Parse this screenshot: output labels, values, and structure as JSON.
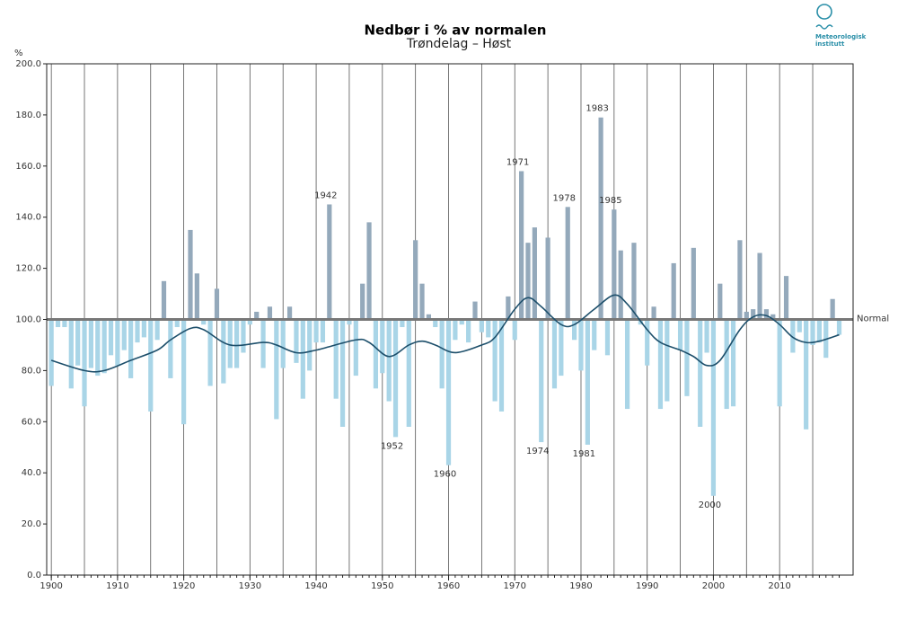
{
  "chart_data": {
    "type": "bar",
    "title": "Nedbør i % av normalen",
    "subtitle": "Trøndelag – Høst",
    "y_label": "%",
    "logo": [
      "Meteorologisk",
      "institutt"
    ],
    "normal": {
      "value": 100,
      "label": "Normal"
    },
    "xlim": [
      1899.3,
      2021.1
    ],
    "ylim": [
      0,
      200
    ],
    "xticks": [
      1900,
      1910,
      1920,
      1930,
      1940,
      1950,
      1960,
      1970,
      1980,
      1990,
      2000,
      2010
    ],
    "xgrid": [
      1900,
      1905,
      1910,
      1915,
      1920,
      1925,
      1930,
      1935,
      1940,
      1945,
      1950,
      1955,
      1960,
      1965,
      1970,
      1975,
      1980,
      1985,
      1990,
      1995,
      2000,
      2005,
      2010,
      2015
    ],
    "yticks": [
      {
        "value": 0,
        "label": "0.0"
      },
      {
        "value": 20,
        "label": "20.0"
      },
      {
        "value": 40,
        "label": "40.0"
      },
      {
        "value": 60,
        "label": "60.0"
      },
      {
        "value": 80,
        "label": "80.0"
      },
      {
        "value": 100,
        "label": "100.0"
      },
      {
        "value": 120,
        "label": "120.0"
      },
      {
        "value": 140,
        "label": "140.0"
      },
      {
        "value": 160,
        "label": "160.0"
      },
      {
        "value": 180,
        "label": "180.0"
      },
      {
        "value": 200,
        "label": "200.0"
      }
    ],
    "colors": {
      "above": "#94a9bb",
      "below": "#a9d5e7",
      "trend": "#1d4f6b"
    },
    "x": [
      1900,
      1901,
      1902,
      1903,
      1904,
      1905,
      1906,
      1907,
      1908,
      1909,
      1910,
      1911,
      1912,
      1913,
      1914,
      1915,
      1916,
      1917,
      1918,
      1919,
      1920,
      1921,
      1922,
      1923,
      1924,
      1925,
      1926,
      1927,
      1928,
      1929,
      1930,
      1931,
      1932,
      1933,
      1934,
      1935,
      1936,
      1937,
      1938,
      1939,
      1940,
      1941,
      1942,
      1943,
      1944,
      1945,
      1946,
      1947,
      1948,
      1949,
      1950,
      1951,
      1952,
      1953,
      1954,
      1955,
      1956,
      1957,
      1958,
      1959,
      1960,
      1961,
      1962,
      1963,
      1964,
      1965,
      1966,
      1967,
      1968,
      1969,
      1970,
      1971,
      1972,
      1973,
      1974,
      1975,
      1976,
      1977,
      1978,
      1979,
      1980,
      1981,
      1982,
      1983,
      1984,
      1985,
      1986,
      1987,
      1988,
      1989,
      1990,
      1991,
      1992,
      1993,
      1994,
      1995,
      1996,
      1997,
      1998,
      1999,
      2000,
      2001,
      2002,
      2003,
      2004,
      2005,
      2006,
      2007,
      2008,
      2009,
      2010,
      2011,
      2012,
      2013,
      2014,
      2015,
      2016,
      2017,
      2018,
      2019
    ],
    "values": [
      74,
      97,
      97,
      73,
      82,
      66,
      81,
      78,
      79,
      86,
      82,
      88,
      77,
      91,
      93,
      64,
      92,
      115,
      77,
      97,
      59,
      135,
      118,
      98,
      74,
      112,
      75,
      81,
      81,
      87,
      98,
      103,
      81,
      105,
      61,
      81,
      105,
      83,
      69,
      80,
      91,
      91,
      145,
      69,
      58,
      98,
      78,
      114,
      138,
      73,
      79,
      68,
      54,
      97,
      58,
      131,
      114,
      102,
      97,
      73,
      43,
      92,
      98,
      91,
      107,
      95,
      93,
      68,
      64,
      109,
      92,
      158,
      130,
      136,
      52,
      132,
      73,
      78,
      144,
      92,
      80,
      51,
      88,
      179,
      86,
      143,
      127,
      65,
      130,
      98,
      82,
      105,
      65,
      68,
      122,
      88,
      70,
      128,
      58,
      87,
      31,
      114,
      65,
      66,
      131,
      103,
      104,
      126,
      104,
      102,
      66,
      117,
      87,
      95,
      57,
      90,
      91,
      85,
      108,
      94
    ],
    "trend": {
      "x": [
        1900,
        1905,
        1908,
        1912,
        1916,
        1918,
        1921,
        1923,
        1927,
        1932,
        1934,
        1937,
        1940,
        1946,
        1948,
        1951,
        1954,
        1956,
        1958,
        1961,
        1965,
        1967,
        1970,
        1972,
        1974,
        1977,
        1979,
        1982,
        1985,
        1987,
        1990,
        1992,
        1995,
        1997,
        1999,
        2001,
        2004,
        2006,
        2008,
        2010,
        2012,
        2014,
        2016,
        2019
      ],
      "values": [
        84,
        80,
        80,
        84,
        88,
        92,
        96.5,
        96,
        90,
        91,
        90,
        87,
        88,
        92,
        91,
        85.5,
        90,
        91.5,
        90,
        87,
        90,
        93,
        104,
        108.5,
        105,
        98,
        98,
        104,
        109.5,
        106,
        96,
        91,
        88,
        85.5,
        82,
        84,
        96,
        101,
        101.5,
        98,
        93,
        91,
        91.5,
        94
      ]
    },
    "annotations": [
      {
        "label": "1942",
        "x": 1942
      },
      {
        "label": "1952",
        "x": 1952
      },
      {
        "label": "1960",
        "x": 1960
      },
      {
        "label": "1971",
        "x": 1971
      },
      {
        "label": "1974",
        "x": 1974
      },
      {
        "label": "1978",
        "x": 1978
      },
      {
        "label": "1981",
        "x": 1981
      },
      {
        "label": "1983",
        "x": 1983
      },
      {
        "label": "1985",
        "x": 1985
      },
      {
        "label": "2000",
        "x": 2000
      }
    ]
  }
}
